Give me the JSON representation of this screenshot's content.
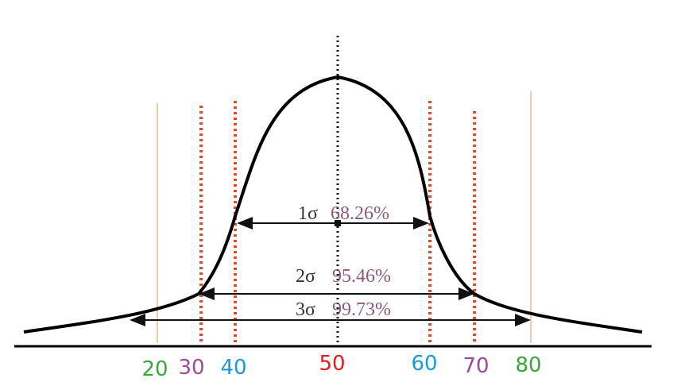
{
  "axis_labels": [
    "20",
    "30",
    "40",
    "50",
    "60",
    "70",
    "80"
  ],
  "intervals": [
    {
      "sigma": "1σ",
      "percent": "68.26%"
    },
    {
      "sigma": "2σ",
      "percent": "95.46%"
    },
    {
      "sigma": "3σ",
      "percent": "99.73%"
    }
  ]
}
